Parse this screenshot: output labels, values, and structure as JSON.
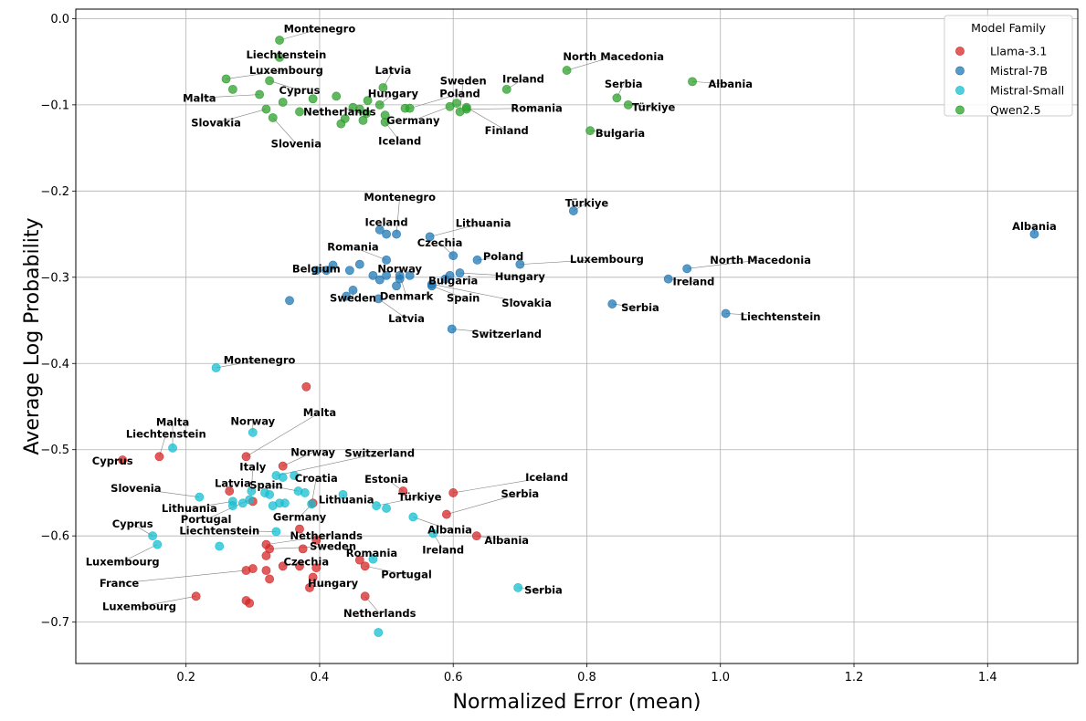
{
  "chart_data": {
    "type": "scatter",
    "xlabel": "Normalized Error (mean)",
    "ylabel": "Average Log Probability",
    "xlim": [
      0.035,
      1.535
    ],
    "ylim": [
      -0.748,
      0.011
    ],
    "xticks": [
      0.2,
      0.4,
      0.6,
      0.8,
      1.0,
      1.2,
      1.4
    ],
    "xtick_labels": [
      "0.2",
      "0.4",
      "0.6",
      "0.8",
      "1.0",
      "1.2",
      "1.4"
    ],
    "yticks": [
      0.0,
      -0.1,
      -0.2,
      -0.3,
      -0.4,
      -0.5,
      -0.6,
      -0.7
    ],
    "ytick_labels": [
      "0.0",
      "−0.1",
      "−0.2",
      "−0.3",
      "−0.4",
      "−0.5",
      "−0.6",
      "−0.7"
    ],
    "grid": true,
    "legend": {
      "title": "Model Family",
      "placement": "top-right"
    },
    "series": [
      {
        "name": "Llama-3.1",
        "color": "#d62728",
        "points": [
          {
            "x": 0.105,
            "y": -0.512,
            "label": "Cyprus",
            "lx": 0.09,
            "ly": -0.513
          },
          {
            "x": 0.16,
            "y": -0.508,
            "label": "Liechtenstein",
            "lx": 0.17,
            "ly": -0.482
          },
          {
            "x": 0.265,
            "y": -0.548,
            "label": "Latvia",
            "lx": 0.27,
            "ly": -0.539
          },
          {
            "x": 0.29,
            "y": -0.508,
            "label": "Malta",
            "lx": 0.4,
            "ly": -0.457
          },
          {
            "x": 0.345,
            "y": -0.519,
            "label": "Norway",
            "lx": 0.39,
            "ly": -0.503
          },
          {
            "x": 0.38,
            "y": -0.427
          },
          {
            "x": 0.3,
            "y": -0.56
          },
          {
            "x": 0.32,
            "y": -0.61,
            "label": "Netherlands",
            "lx": 0.41,
            "ly": -0.6
          },
          {
            "x": 0.325,
            "y": -0.615,
            "label": "Sweden",
            "lx": 0.42,
            "ly": -0.612
          },
          {
            "x": 0.32,
            "y": -0.623
          },
          {
            "x": 0.37,
            "y": -0.592
          },
          {
            "x": 0.39,
            "y": -0.562,
            "label": "Germany",
            "lx": 0.37,
            "ly": -0.578
          },
          {
            "x": 0.395,
            "y": -0.605
          },
          {
            "x": 0.375,
            "y": -0.615
          },
          {
            "x": 0.345,
            "y": -0.635,
            "label": "Czechia",
            "lx": 0.38,
            "ly": -0.63
          },
          {
            "x": 0.37,
            "y": -0.635
          },
          {
            "x": 0.395,
            "y": -0.637
          },
          {
            "x": 0.39,
            "y": -0.648
          },
          {
            "x": 0.385,
            "y": -0.66,
            "label": "Hungary",
            "lx": 0.42,
            "ly": -0.655
          },
          {
            "x": 0.32,
            "y": -0.64
          },
          {
            "x": 0.3,
            "y": -0.638
          },
          {
            "x": 0.29,
            "y": -0.64,
            "label": "France",
            "lx": 0.1,
            "ly": -0.655
          },
          {
            "x": 0.325,
            "y": -0.65
          },
          {
            "x": 0.29,
            "y": -0.675
          },
          {
            "x": 0.295,
            "y": -0.678
          },
          {
            "x": 0.215,
            "y": -0.67,
            "label": "Luxembourg",
            "lx": 0.13,
            "ly": -0.682
          },
          {
            "x": 0.46,
            "y": -0.628
          },
          {
            "x": 0.468,
            "y": -0.635,
            "label": "Portugal",
            "lx": 0.53,
            "ly": -0.645
          },
          {
            "x": 0.468,
            "y": -0.67,
            "label": "Netherlands",
            "lx": 0.49,
            "ly": -0.69
          },
          {
            "x": 0.525,
            "y": -0.548,
            "label": "Estonia",
            "lx": 0.5,
            "ly": -0.534
          },
          {
            "x": 0.6,
            "y": -0.55,
            "label": "Iceland",
            "lx": 0.74,
            "ly": -0.532
          },
          {
            "x": 0.59,
            "y": -0.575,
            "label": "Serbia",
            "lx": 0.7,
            "ly": -0.551
          },
          {
            "x": 0.635,
            "y": -0.6,
            "label": "Albania",
            "lx": 0.68,
            "ly": -0.605
          }
        ]
      },
      {
        "name": "Mistral-7B",
        "color": "#1f77b4",
        "points": [
          {
            "x": 1.47,
            "y": -0.25,
            "label": "Albania",
            "lx": 1.47,
            "ly": -0.241
          },
          {
            "x": 0.78,
            "y": -0.223,
            "label": "Türkiye",
            "lx": 0.8,
            "ly": -0.214
          },
          {
            "x": 0.95,
            "y": -0.29,
            "label": "North Macedonia",
            "lx": 1.06,
            "ly": -0.28
          },
          {
            "x": 0.922,
            "y": -0.302,
            "label": "Ireland",
            "lx": 0.96,
            "ly": -0.305
          },
          {
            "x": 1.008,
            "y": -0.342,
            "label": "Liechtenstein",
            "lx": 1.09,
            "ly": -0.346
          },
          {
            "x": 0.838,
            "y": -0.331,
            "label": "Serbia",
            "lx": 0.88,
            "ly": -0.335
          },
          {
            "x": 0.7,
            "y": -0.285,
            "label": "Luxembourg",
            "lx": 0.83,
            "ly": -0.279
          },
          {
            "x": 0.636,
            "y": -0.28,
            "label": "Poland",
            "lx": 0.675,
            "ly": -0.276
          },
          {
            "x": 0.6,
            "y": -0.275,
            "label": "Czechia",
            "lx": 0.58,
            "ly": -0.26
          },
          {
            "x": 0.565,
            "y": -0.253,
            "label": "Lithuania",
            "lx": 0.645,
            "ly": -0.237
          },
          {
            "x": 0.61,
            "y": -0.295,
            "label": "Hungary",
            "lx": 0.7,
            "ly": -0.299
          },
          {
            "x": 0.595,
            "y": -0.298,
            "label": "Bulgaria",
            "lx": 0.6,
            "ly": -0.304
          },
          {
            "x": 0.588,
            "y": -0.302
          },
          {
            "x": 0.52,
            "y": -0.302,
            "label": "Norway",
            "lx": 0.52,
            "ly": -0.29
          },
          {
            "x": 0.5,
            "y": -0.298
          },
          {
            "x": 0.52,
            "y": -0.298,
            "label": "Denmark",
            "lx": 0.53,
            "ly": -0.322
          },
          {
            "x": 0.515,
            "y": -0.31
          },
          {
            "x": 0.535,
            "y": -0.298
          },
          {
            "x": 0.568,
            "y": -0.31,
            "label": "Spain",
            "lx": 0.615,
            "ly": -0.324
          },
          {
            "x": 0.568,
            "y": -0.308,
            "label": "Slovakia",
            "lx": 0.71,
            "ly": -0.33
          },
          {
            "x": 0.598,
            "y": -0.36,
            "label": "Switzerland",
            "lx": 0.68,
            "ly": -0.366
          },
          {
            "x": 0.5,
            "y": -0.28,
            "label": "Romania",
            "lx": 0.45,
            "ly": -0.265
          },
          {
            "x": 0.49,
            "y": -0.245,
            "label": "Iceland",
            "lx": 0.5,
            "ly": -0.236
          },
          {
            "x": 0.5,
            "y": -0.25
          },
          {
            "x": 0.515,
            "y": -0.25,
            "label": "Montenegro",
            "lx": 0.52,
            "ly": -0.207
          },
          {
            "x": 0.46,
            "y": -0.285
          },
          {
            "x": 0.48,
            "y": -0.298
          },
          {
            "x": 0.49,
            "y": -0.303
          },
          {
            "x": 0.42,
            "y": -0.286,
            "label": "Belgium",
            "lx": 0.395,
            "ly": -0.29
          },
          {
            "x": 0.395,
            "y": -0.292
          },
          {
            "x": 0.41,
            "y": -0.292
          },
          {
            "x": 0.445,
            "y": -0.292
          },
          {
            "x": 0.45,
            "y": -0.315,
            "label": "Sweden",
            "lx": 0.45,
            "ly": -0.324
          },
          {
            "x": 0.44,
            "y": -0.322
          },
          {
            "x": 0.488,
            "y": -0.325,
            "label": "Latvia",
            "lx": 0.53,
            "ly": -0.348
          },
          {
            "x": 0.355,
            "y": -0.327
          }
        ]
      },
      {
        "name": "Mistral-Small",
        "color": "#17becf",
        "points": [
          {
            "x": 0.245,
            "y": -0.405,
            "label": "Montenegro",
            "lx": 0.31,
            "ly": -0.396
          },
          {
            "x": 0.18,
            "y": -0.498,
            "label": "Malta",
            "lx": 0.18,
            "ly": -0.468
          },
          {
            "x": 0.3,
            "y": -0.48,
            "label": "Norway",
            "lx": 0.3,
            "ly": -0.467
          },
          {
            "x": 0.22,
            "y": -0.555,
            "label": "Slovenia",
            "lx": 0.125,
            "ly": -0.545
          },
          {
            "x": 0.27,
            "y": -0.56,
            "label": "Lithuania",
            "lx": 0.205,
            "ly": -0.568
          },
          {
            "x": 0.27,
            "y": -0.565
          },
          {
            "x": 0.285,
            "y": -0.562
          },
          {
            "x": 0.295,
            "y": -0.558,
            "label": "Portugal",
            "lx": 0.23,
            "ly": -0.581
          },
          {
            "x": 0.298,
            "y": -0.548,
            "label": "Italy",
            "lx": 0.3,
            "ly": -0.52
          },
          {
            "x": 0.318,
            "y": -0.55
          },
          {
            "x": 0.325,
            "y": -0.552
          },
          {
            "x": 0.335,
            "y": -0.53,
            "label": "Switzerland",
            "lx": 0.49,
            "ly": -0.504
          },
          {
            "x": 0.345,
            "y": -0.532
          },
          {
            "x": 0.362,
            "y": -0.53
          },
          {
            "x": 0.34,
            "y": -0.562
          },
          {
            "x": 0.348,
            "y": -0.562
          },
          {
            "x": 0.368,
            "y": -0.548,
            "label": "Spain",
            "lx": 0.32,
            "ly": -0.541
          },
          {
            "x": 0.378,
            "y": -0.55
          },
          {
            "x": 0.33,
            "y": -0.565
          },
          {
            "x": 0.388,
            "y": -0.563,
            "label": "Croatia",
            "lx": 0.395,
            "ly": -0.533
          },
          {
            "x": 0.435,
            "y": -0.552,
            "label": "Lithuania",
            "lx": 0.44,
            "ly": -0.558
          },
          {
            "x": 0.485,
            "y": -0.565,
            "label": "Türkiye",
            "lx": 0.55,
            "ly": -0.555
          },
          {
            "x": 0.5,
            "y": -0.568
          },
          {
            "x": 0.54,
            "y": -0.578,
            "label": "Albania",
            "lx": 0.595,
            "ly": -0.593
          },
          {
            "x": 0.57,
            "y": -0.597,
            "label": "Ireland",
            "lx": 0.585,
            "ly": -0.616
          },
          {
            "x": 0.335,
            "y": -0.595,
            "label": "Liechtenstein",
            "lx": 0.25,
            "ly": -0.594
          },
          {
            "x": 0.25,
            "y": -0.612
          },
          {
            "x": 0.15,
            "y": -0.6,
            "label": "Cyprus",
            "lx": 0.12,
            "ly": -0.586
          },
          {
            "x": 0.157,
            "y": -0.61,
            "label": "Luxembourg",
            "lx": 0.105,
            "ly": -0.63
          },
          {
            "x": 0.48,
            "y": -0.627,
            "label": "Romania",
            "lx": 0.478,
            "ly": -0.62
          },
          {
            "x": 0.697,
            "y": -0.66,
            "label": "Serbia",
            "lx": 0.735,
            "ly": -0.663
          },
          {
            "x": 0.488,
            "y": -0.712
          }
        ]
      },
      {
        "name": "Qwen2.5",
        "color": "#2ca02c",
        "points": [
          {
            "x": 0.34,
            "y": -0.025,
            "label": "Montenegro",
            "lx": 0.4,
            "ly": -0.012
          },
          {
            "x": 0.34,
            "y": -0.045,
            "label": "Liechtenstein",
            "lx": 0.35,
            "ly": -0.042
          },
          {
            "x": 0.26,
            "y": -0.07,
            "label": "Luxembourg",
            "lx": 0.35,
            "ly": -0.06
          },
          {
            "x": 0.27,
            "y": -0.082
          },
          {
            "x": 0.325,
            "y": -0.072,
            "label": "Cyprus",
            "lx": 0.37,
            "ly": -0.083
          },
          {
            "x": 0.31,
            "y": -0.088,
            "label": "Malta",
            "lx": 0.22,
            "ly": -0.092
          },
          {
            "x": 0.32,
            "y": -0.105,
            "label": "Slovakia",
            "lx": 0.245,
            "ly": -0.121
          },
          {
            "x": 0.33,
            "y": -0.115,
            "label": "Slovenia",
            "lx": 0.365,
            "ly": -0.145
          },
          {
            "x": 0.345,
            "y": -0.097
          },
          {
            "x": 0.37,
            "y": -0.108
          },
          {
            "x": 0.39,
            "y": -0.093
          },
          {
            "x": 0.425,
            "y": -0.09
          },
          {
            "x": 0.432,
            "y": -0.122
          },
          {
            "x": 0.438,
            "y": -0.116
          },
          {
            "x": 0.45,
            "y": -0.103,
            "label": "Netherlands",
            "lx": 0.43,
            "ly": -0.108
          },
          {
            "x": 0.46,
            "y": -0.105
          },
          {
            "x": 0.465,
            "y": -0.118
          },
          {
            "x": 0.47,
            "y": -0.11
          },
          {
            "x": 0.472,
            "y": -0.095
          },
          {
            "x": 0.49,
            "y": -0.1,
            "label": "Hungary",
            "lx": 0.51,
            "ly": -0.087
          },
          {
            "x": 0.498,
            "y": -0.112
          },
          {
            "x": 0.498,
            "y": -0.12,
            "label": "Iceland",
            "lx": 0.52,
            "ly": -0.142
          },
          {
            "x": 0.495,
            "y": -0.08,
            "label": "Latvia",
            "lx": 0.51,
            "ly": -0.06
          },
          {
            "x": 0.528,
            "y": -0.104
          },
          {
            "x": 0.535,
            "y": -0.104,
            "label": "Poland",
            "lx": 0.61,
            "ly": -0.087
          },
          {
            "x": 0.595,
            "y": -0.102,
            "label": "Germany",
            "lx": 0.54,
            "ly": -0.118
          },
          {
            "x": 0.605,
            "y": -0.098
          },
          {
            "x": 0.61,
            "y": -0.108,
            "label": "Sweden",
            "lx": 0.615,
            "ly": -0.072
          },
          {
            "x": 0.62,
            "y": -0.103,
            "label": "Finland",
            "lx": 0.68,
            "ly": -0.13
          },
          {
            "x": 0.62,
            "y": -0.105,
            "label": "Romania",
            "lx": 0.725,
            "ly": -0.104
          },
          {
            "x": 0.68,
            "y": -0.082,
            "label": "Ireland",
            "lx": 0.705,
            "ly": -0.07
          },
          {
            "x": 0.77,
            "y": -0.06,
            "label": "North Macedonia",
            "lx": 0.84,
            "ly": -0.044
          },
          {
            "x": 0.805,
            "y": -0.13,
            "label": "Bulgaria",
            "lx": 0.85,
            "ly": -0.133
          },
          {
            "x": 0.845,
            "y": -0.092,
            "label": "Serbia",
            "lx": 0.855,
            "ly": -0.076
          },
          {
            "x": 0.862,
            "y": -0.1,
            "label": "Türkiye",
            "lx": 0.9,
            "ly": -0.103
          },
          {
            "x": 0.958,
            "y": -0.073,
            "label": "Albania",
            "lx": 1.015,
            "ly": -0.076
          }
        ]
      }
    ]
  }
}
